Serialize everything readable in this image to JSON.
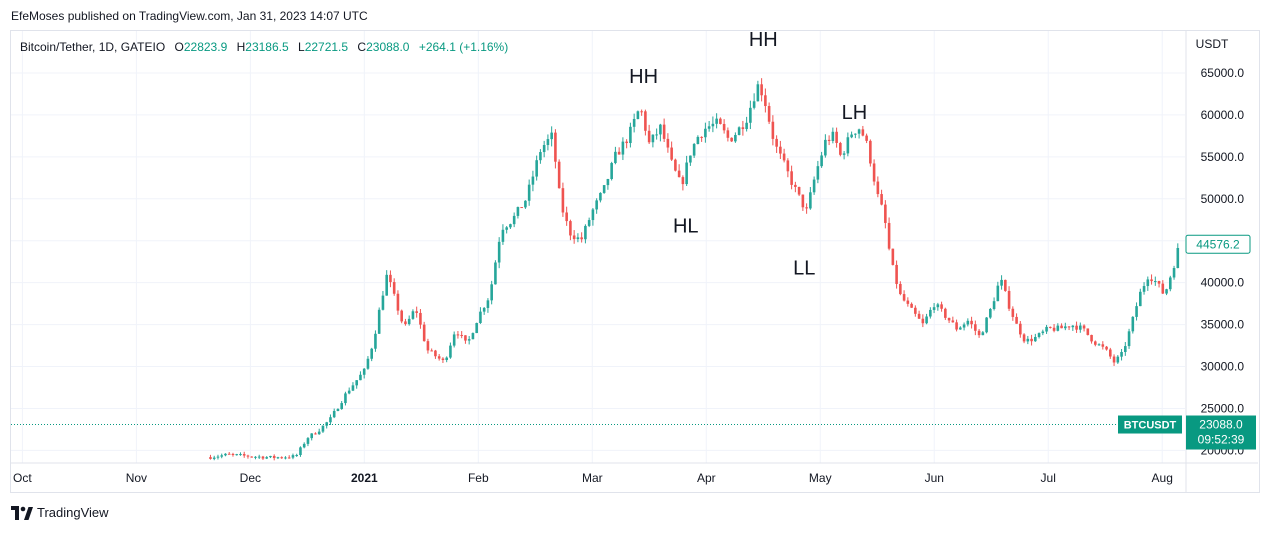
{
  "header": {
    "published_by": "EfeMoses published on TradingView.com, Jan 31, 2023 14:07 UTC"
  },
  "legend": {
    "symbol": "Bitcoin/Tether, 1D, GATEIO",
    "open_label": "O",
    "open": "22823.9",
    "high_label": "H",
    "high": "23186.5",
    "low_label": "L",
    "low": "22721.5",
    "close_label": "C",
    "close": "23088.0",
    "change": "+264.1 (+1.16%)"
  },
  "footer": {
    "brand": "TradingView"
  },
  "colors": {
    "up": "#26a69a",
    "down": "#ef5350",
    "grid": "#f0f3fa",
    "text": "#131722",
    "badge": "#089981"
  },
  "chart_data": {
    "type": "candlestick",
    "title": "Bitcoin/Tether, 1D, GATEIO",
    "currency_label": "USDT",
    "y_ticks": [
      20000,
      25000,
      30000,
      35000,
      40000,
      45000,
      50000,
      55000,
      60000,
      65000
    ],
    "y_tick_labels": [
      "20000.0",
      "25000.0",
      "30000.0",
      "35000.0",
      "40000.0",
      "45000.0",
      "50000.0",
      "55000.0",
      "60000.0",
      "65000.0"
    ],
    "ylim": [
      18500,
      70000
    ],
    "x_ticks": [
      "Oct",
      "Nov",
      "Dec",
      "2021",
      "Feb",
      "Mar",
      "Apr",
      "May",
      "Jun",
      "Jul",
      "Aug"
    ],
    "x_tick_months": [
      0,
      1,
      2,
      3,
      4,
      5,
      6,
      7,
      8,
      9,
      10
    ],
    "xlim_months": [
      -0.1,
      10.2
    ],
    "price_path": [
      [
        1.65,
        19200
      ],
      [
        1.8,
        19500
      ],
      [
        2.0,
        19300
      ],
      [
        2.2,
        19150
      ],
      [
        2.4,
        19300
      ],
      [
        2.5,
        21500
      ],
      [
        2.6,
        22400
      ],
      [
        2.7,
        23700
      ],
      [
        2.85,
        27000
      ],
      [
        3.0,
        29500
      ],
      [
        3.08,
        33000
      ],
      [
        3.15,
        38000
      ],
      [
        3.2,
        41000
      ],
      [
        3.28,
        37500
      ],
      [
        3.35,
        34500
      ],
      [
        3.45,
        37000
      ],
      [
        3.55,
        32000
      ],
      [
        3.7,
        30500
      ],
      [
        3.8,
        34500
      ],
      [
        3.9,
        32500
      ],
      [
        4.0,
        36000
      ],
      [
        4.1,
        38500
      ],
      [
        4.2,
        46500
      ],
      [
        4.3,
        47500
      ],
      [
        4.42,
        50000
      ],
      [
        4.55,
        56000
      ],
      [
        4.65,
        57500
      ],
      [
        4.72,
        49500
      ],
      [
        4.8,
        46000
      ],
      [
        4.9,
        45000
      ],
      [
        5.0,
        48500
      ],
      [
        5.1,
        51000
      ],
      [
        5.2,
        55000
      ],
      [
        5.32,
        57500
      ],
      [
        5.42,
        61000
      ],
      [
        5.5,
        56500
      ],
      [
        5.6,
        58500
      ],
      [
        5.7,
        54000
      ],
      [
        5.78,
        51500
      ],
      [
        5.86,
        55500
      ],
      [
        5.93,
        57500
      ],
      [
        6.0,
        58500
      ],
      [
        6.1,
        59000
      ],
      [
        6.2,
        57000
      ],
      [
        6.27,
        58000
      ],
      [
        6.35,
        59500
      ],
      [
        6.45,
        63500
      ],
      [
        6.5,
        62500
      ],
      [
        6.55,
        59500
      ],
      [
        6.6,
        56500
      ],
      [
        6.7,
        53500
      ],
      [
        6.8,
        50500
      ],
      [
        6.88,
        48500
      ],
      [
        6.96,
        53000
      ],
      [
        7.05,
        57000
      ],
      [
        7.12,
        57500
      ],
      [
        7.18,
        55000
      ],
      [
        7.28,
        58000
      ],
      [
        7.35,
        58500
      ],
      [
        7.42,
        56000
      ],
      [
        7.5,
        50500
      ],
      [
        7.56,
        48000
      ],
      [
        7.62,
        42500
      ],
      [
        7.7,
        38500
      ],
      [
        7.78,
        37000
      ],
      [
        7.9,
        35000
      ],
      [
        8.0,
        37500
      ],
      [
        8.1,
        36000
      ],
      [
        8.2,
        34500
      ],
      [
        8.3,
        35500
      ],
      [
        8.4,
        33500
      ],
      [
        8.5,
        37000
      ],
      [
        8.58,
        40500
      ],
      [
        8.65,
        37500
      ],
      [
        8.72,
        35000
      ],
      [
        8.8,
        33000
      ],
      [
        8.9,
        33500
      ],
      [
        9.0,
        34500
      ],
      [
        9.1,
        34500
      ],
      [
        9.2,
        35000
      ],
      [
        9.3,
        34500
      ],
      [
        9.4,
        33000
      ],
      [
        9.5,
        32000
      ],
      [
        9.58,
        30500
      ],
      [
        9.65,
        31500
      ],
      [
        9.72,
        34500
      ],
      [
        9.8,
        38500
      ],
      [
        9.88,
        41000
      ],
      [
        9.95,
        40000
      ],
      [
        10.02,
        38500
      ],
      [
        10.1,
        42000
      ],
      [
        10.15,
        44500
      ]
    ],
    "annotations": [
      {
        "text": "HH",
        "month": 5.45,
        "price": 63800
      },
      {
        "text": "HL",
        "month": 5.82,
        "price": 46000
      },
      {
        "text": "HH",
        "month": 6.5,
        "price": 68200
      },
      {
        "text": "LL",
        "month": 6.86,
        "price": 41000
      },
      {
        "text": "LH",
        "month": 7.3,
        "price": 59500
      }
    ],
    "last_price_label": "44576.2",
    "last_price": 44576.2,
    "current_price": 23088.0,
    "current_price_label": "23088.0",
    "current_symbol": "BTCUSDT",
    "countdown": "09:52:39"
  }
}
